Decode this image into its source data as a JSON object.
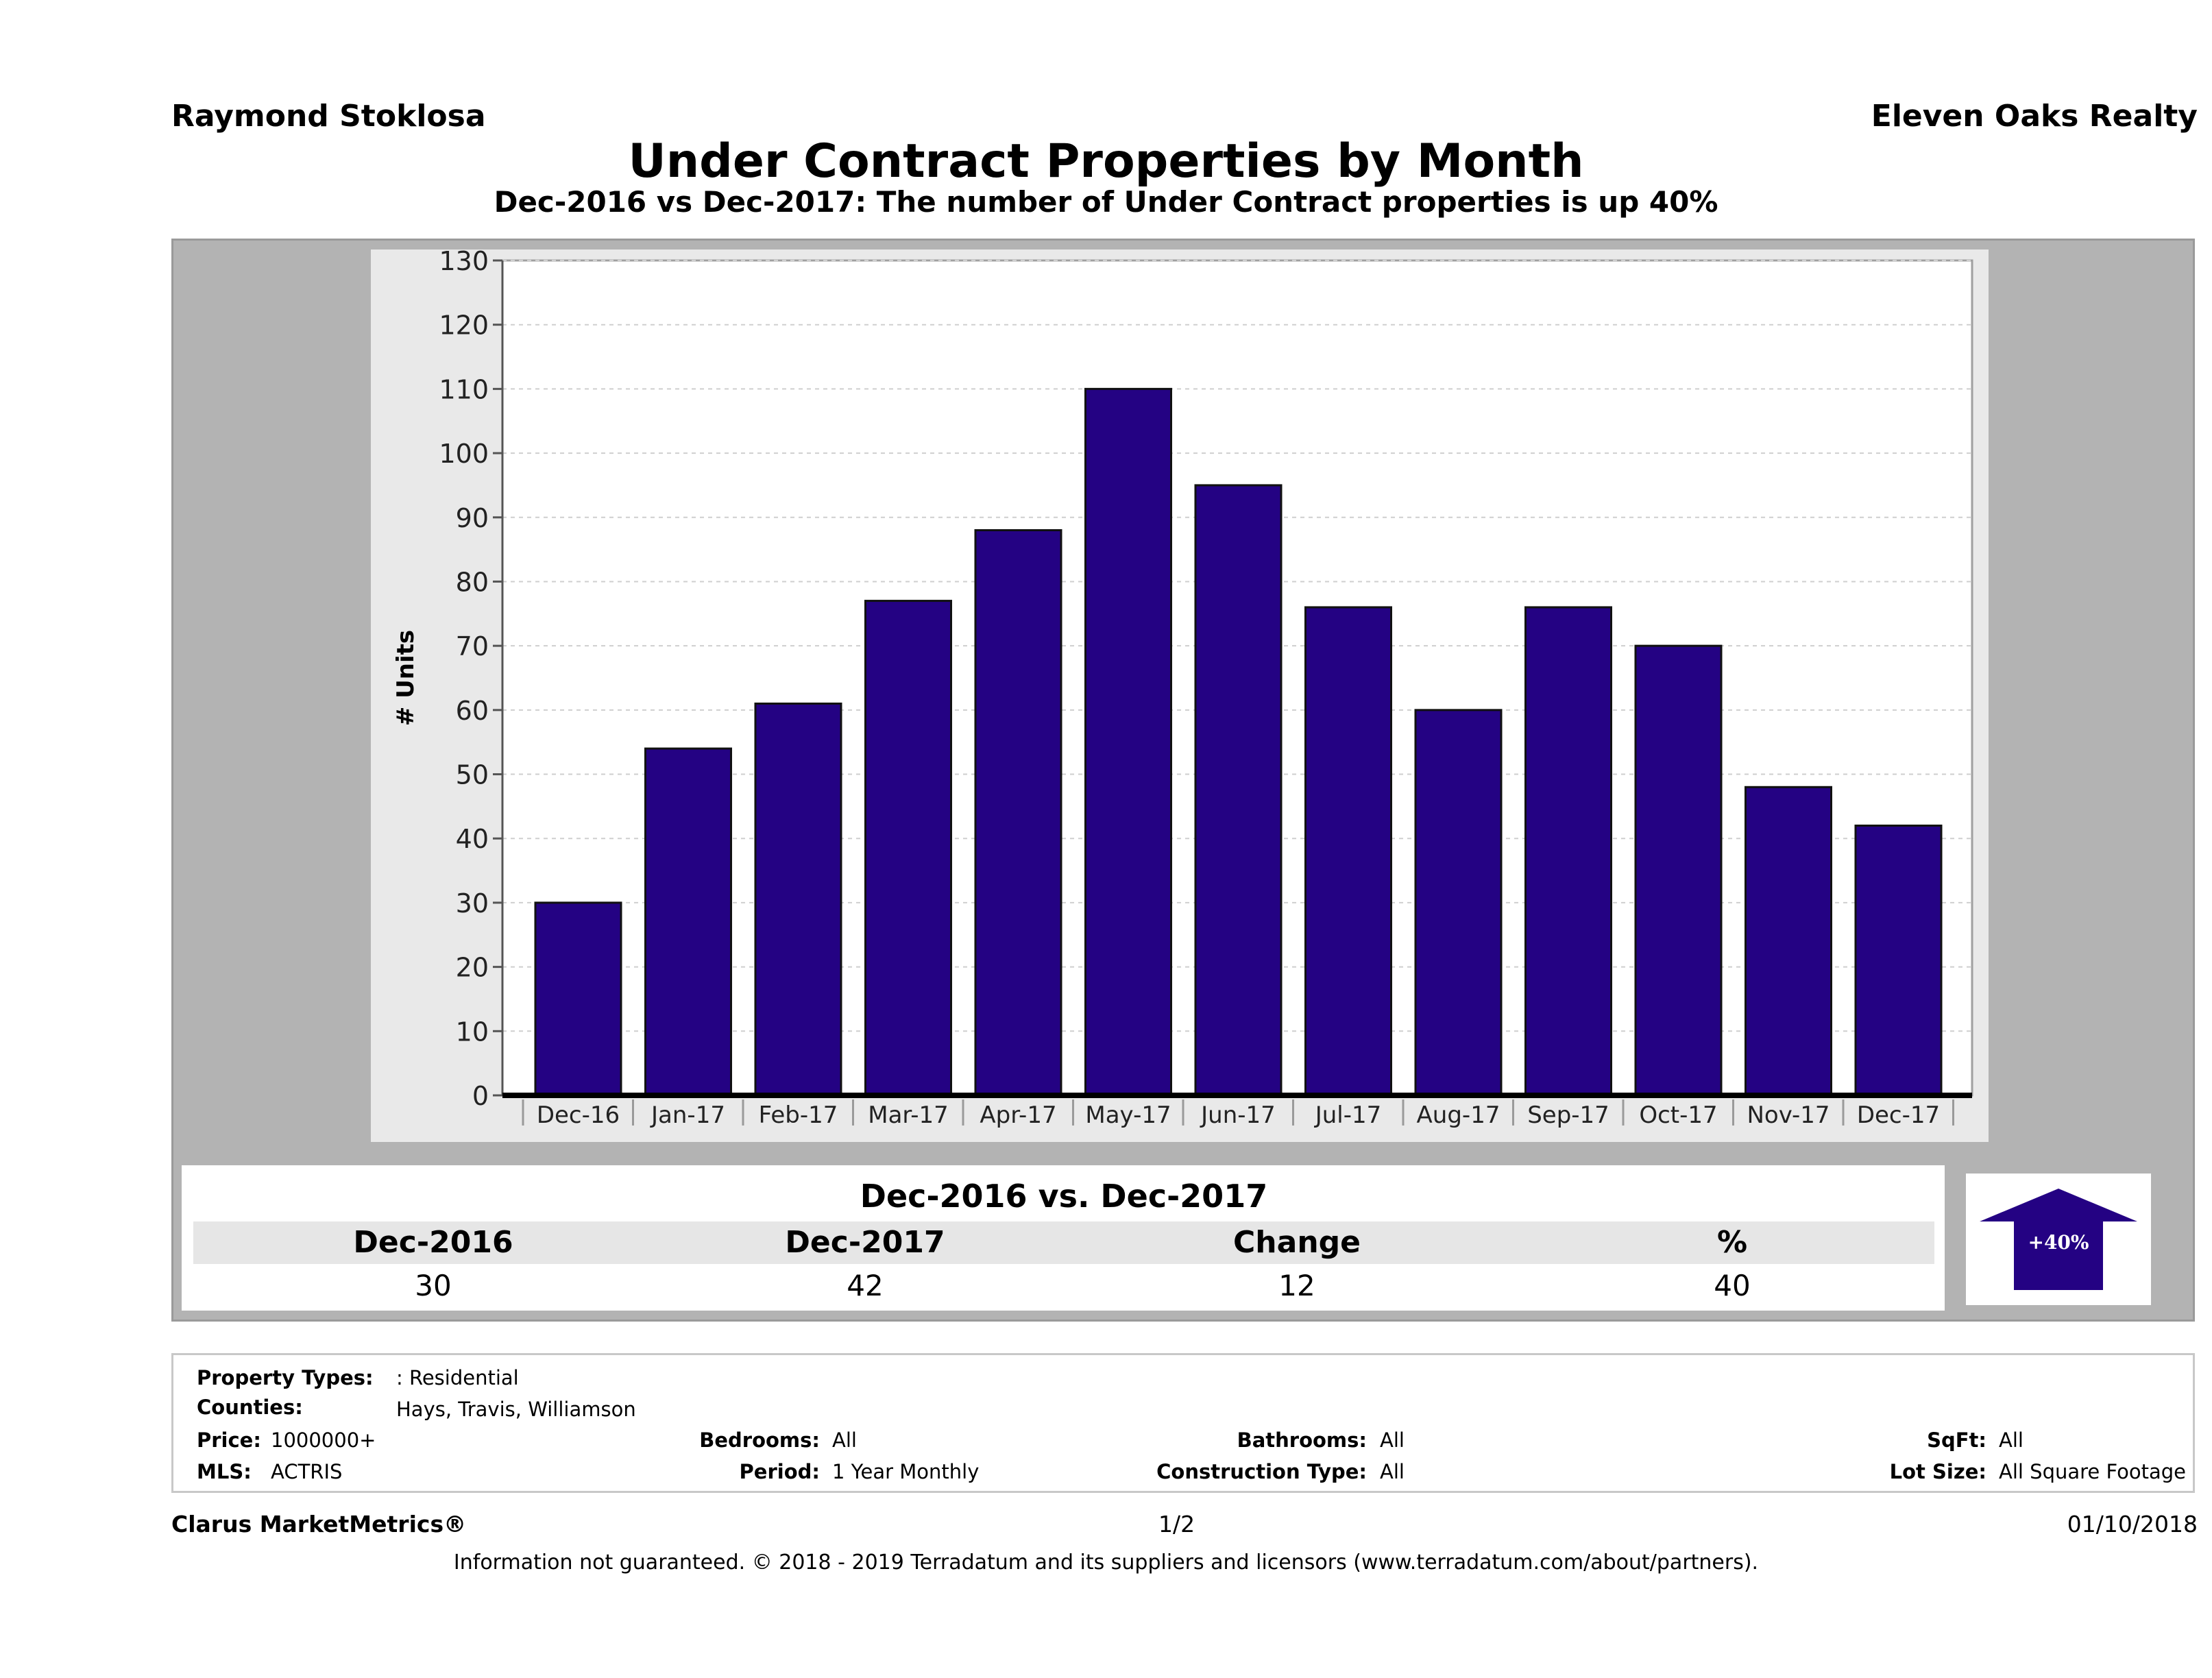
{
  "header": {
    "agent": "Raymond Stoklosa",
    "company": "Eleven Oaks Realty",
    "title": "Under Contract Properties by Month",
    "subtitle": "Dec-2016 vs Dec-2017: The number of Under Contract  properties is up 40%"
  },
  "chart_data": {
    "type": "bar",
    "categories": [
      "Dec-16",
      "Jan-17",
      "Feb-17",
      "Mar-17",
      "Apr-17",
      "May-17",
      "Jun-17",
      "Jul-17",
      "Aug-17",
      "Sep-17",
      "Oct-17",
      "Nov-17",
      "Dec-17"
    ],
    "values": [
      30,
      54,
      61,
      77,
      88,
      110,
      95,
      76,
      60,
      76,
      70,
      48,
      42
    ],
    "ylabel": "# Units",
    "ylim": [
      0,
      130
    ],
    "yticks": [
      0,
      10,
      20,
      30,
      40,
      50,
      60,
      70,
      80,
      90,
      100,
      110,
      120,
      130
    ],
    "grid": true,
    "bar_color": "#240283"
  },
  "comparison": {
    "title": "Dec-2016 vs. Dec-2017",
    "headers": [
      "Dec-2016",
      "Dec-2017",
      "Change",
      "%"
    ],
    "values": [
      "30",
      "42",
      "12",
      "40"
    ],
    "badge": "+40%",
    "badge_color": "#240283"
  },
  "criteria": {
    "property_types_label": "Property Types:",
    "property_types": ": Residential",
    "counties_label": "Counties:",
    "counties": "Hays, Travis, Williamson",
    "price_label": "Price:",
    "price": "1000000+",
    "mls_label": "MLS:",
    "mls": "ACTRIS",
    "bedrooms_label": "Bedrooms:",
    "bedrooms": "All",
    "period_label": "Period:",
    "period": "1 Year Monthly",
    "bathrooms_label": "Bathrooms:",
    "bathrooms": "All",
    "construction_label": "Construction Type:",
    "construction": "All",
    "sqft_label": "SqFt:",
    "sqft": "All",
    "lot_label": "Lot Size:",
    "lot": "All Square Footage"
  },
  "footer": {
    "brand": "Clarus MarketMetrics®",
    "page": "1/2",
    "date": "01/10/2018",
    "disclaimer": "Information not guaranteed. © 2018 - 2019 Terradatum and its suppliers and licensors (www.terradatum.com/about/partners)."
  }
}
